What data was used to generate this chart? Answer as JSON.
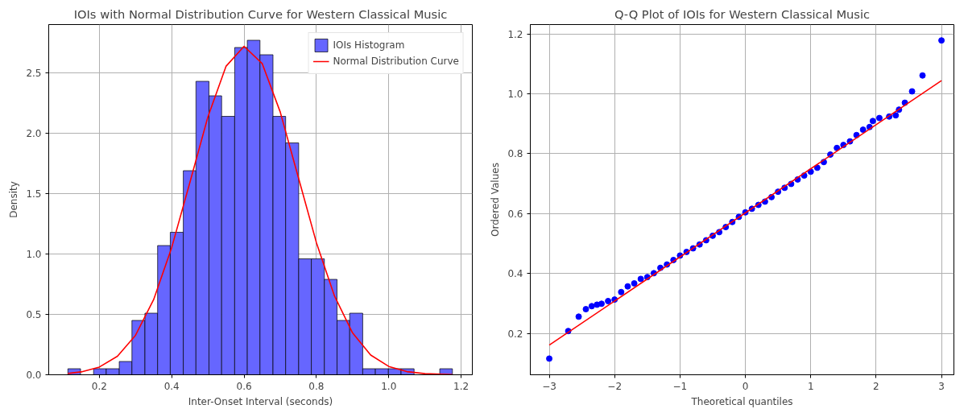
{
  "chart_data": [
    {
      "type": "histogram",
      "title": "IOIs with Normal Distribution Curve for Western Classical Music",
      "xlabel": "Inter-Onset Interval (seconds)",
      "ylabel": "Density",
      "xlim": [
        0.06,
        1.231
      ],
      "ylim": [
        0,
        2.9
      ],
      "xticks": [
        0.2,
        0.4,
        0.6,
        0.8,
        {
          "value": 1,
          "label": "1.0"
        },
        1.2
      ],
      "yticks": [
        {
          "value": 0,
          "label": "0.0"
        },
        0.5,
        {
          "value": 1,
          "label": "1.0"
        },
        1.5,
        {
          "value": 2,
          "label": "2.0"
        },
        2.5
      ],
      "grid": true,
      "legend": "top right",
      "series": [
        {
          "name": "IOIs Histogram",
          "color": "#6666ff",
          "bins": [
            0.113,
            0.148,
            0.184,
            0.219,
            0.255,
            0.29,
            0.326,
            0.361,
            0.396,
            0.432,
            0.467,
            0.503,
            0.538,
            0.574,
            0.609,
            0.644,
            0.68,
            0.715,
            0.751,
            0.786,
            0.822,
            0.857,
            0.892,
            0.928,
            0.963,
            0.999,
            1.034,
            1.07,
            1.105,
            1.141,
            1.176
          ],
          "values": [
            0.05,
            0,
            0.05,
            0.05,
            0.11,
            0.45,
            0.51,
            1.07,
            1.18,
            1.69,
            2.43,
            2.31,
            2.14,
            2.71,
            2.77,
            2.65,
            2.14,
            1.92,
            0.96,
            0.96,
            0.79,
            0.45,
            0.51,
            0.05,
            0.05,
            0.05,
            0.05,
            0,
            0,
            0.05
          ]
        },
        {
          "type": "line",
          "name": "Normal Distribution Curve",
          "color": "#ff0000",
          "x": [
            0.113,
            0.15,
            0.2,
            0.25,
            0.3,
            0.35,
            0.4,
            0.45,
            0.5,
            0.55,
            0.6,
            0.65,
            0.7,
            0.75,
            0.8,
            0.85,
            0.9,
            0.95,
            1.0,
            1.05,
            1.1,
            1.176
          ],
          "values": [
            0.011,
            0.024,
            0.064,
            0.153,
            0.327,
            0.622,
            1.054,
            1.59,
            2.135,
            2.554,
            2.72,
            2.578,
            2.176,
            1.635,
            1.094,
            0.652,
            0.346,
            0.163,
            0.069,
            0.026,
            0.009,
            0.001
          ]
        }
      ]
    },
    {
      "type": "scatter",
      "title": "Q-Q Plot of IOIs for Western Classical Music",
      "xlabel": "Theoretical quantiles",
      "ylabel": "Ordered Values",
      "xlim": [
        -3.29,
        3.19
      ],
      "ylim": [
        0.062,
        1.231
      ],
      "xticks": [
        {
          "value": -3,
          "label": "−3"
        },
        {
          "value": -2,
          "label": "−2"
        },
        {
          "value": -1,
          "label": "−1"
        },
        0,
        1,
        2,
        3
      ],
      "yticks": [
        0.2,
        0.4,
        0.6,
        0.8,
        {
          "value": 1,
          "label": "1.0"
        },
        1.2
      ],
      "grid": true,
      "series": [
        {
          "marker": "circle",
          "color": "#0000ff",
          "x": [
            -3.0,
            -2.71,
            -2.55,
            -2.44,
            -2.35,
            -2.27,
            -2.2,
            -2.1,
            -2.0,
            -1.9,
            -1.8,
            -1.7,
            -1.6,
            -1.5,
            -1.4,
            -1.3,
            -1.2,
            -1.1,
            -1.0,
            -0.9,
            -0.8,
            -0.7,
            -0.6,
            -0.5,
            -0.4,
            -0.3,
            -0.2,
            -0.1,
            0.0,
            0.1,
            0.2,
            0.3,
            0.4,
            0.5,
            0.6,
            0.7,
            0.8,
            0.9,
            1.0,
            1.1,
            1.2,
            1.3,
            1.4,
            1.5,
            1.6,
            1.7,
            1.8,
            1.9,
            1.95,
            2.05,
            2.2,
            2.3,
            2.35,
            2.44,
            2.55,
            2.71,
            3.0
          ],
          "values": [
            0.116,
            0.208,
            0.256,
            0.281,
            0.291,
            0.296,
            0.299,
            0.308,
            0.313,
            0.338,
            0.357,
            0.367,
            0.382,
            0.388,
            0.401,
            0.419,
            0.43,
            0.445,
            0.46,
            0.472,
            0.484,
            0.497,
            0.511,
            0.526,
            0.538,
            0.555,
            0.572,
            0.589,
            0.604,
            0.616,
            0.629,
            0.64,
            0.655,
            0.673,
            0.686,
            0.699,
            0.714,
            0.727,
            0.74,
            0.753,
            0.772,
            0.797,
            0.819,
            0.829,
            0.841,
            0.862,
            0.88,
            0.889,
            0.909,
            0.919,
            0.924,
            0.928,
            0.947,
            0.97,
            1.008,
            1.061,
            1.178
          ]
        },
        {
          "type": "line",
          "color": "#ff0000",
          "x": [
            -3,
            3
          ],
          "values": [
            0.161,
            1.044
          ]
        }
      ]
    }
  ]
}
